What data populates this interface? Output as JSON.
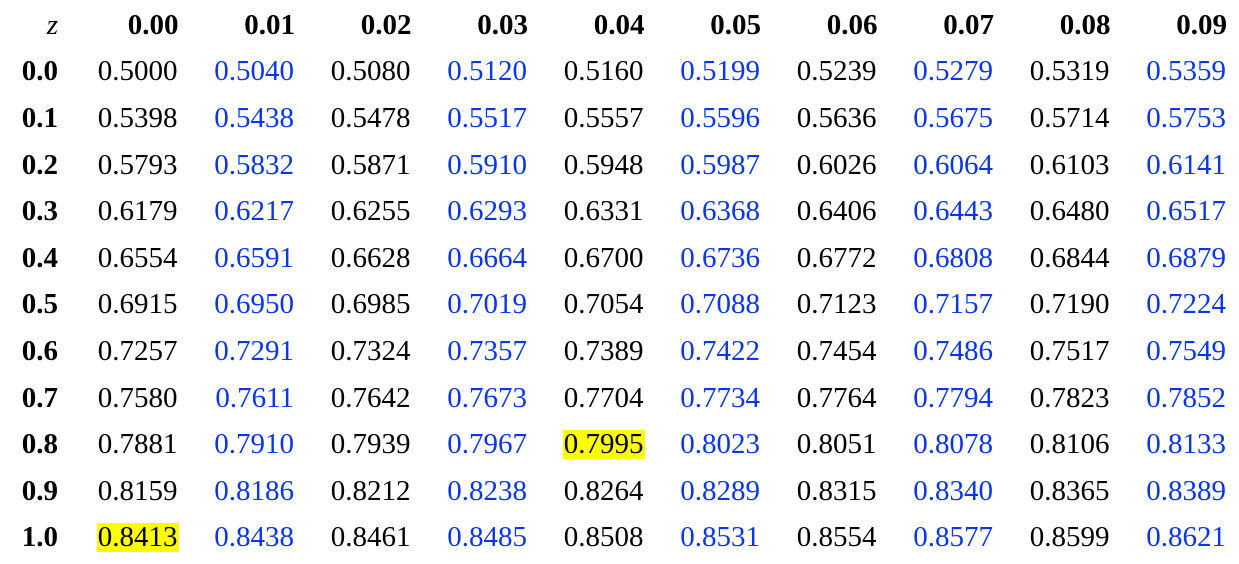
{
  "table": {
    "corner": "z",
    "columns": [
      "0.00",
      "0.01",
      "0.02",
      "0.03",
      "0.04",
      "0.05",
      "0.06",
      "0.07",
      "0.08",
      "0.09"
    ],
    "colors": {
      "black": "#000000",
      "blue": "#0a36e8",
      "highlight": "#ffff00"
    },
    "blue_columns": [
      1,
      3,
      5,
      7,
      9
    ],
    "rows": [
      {
        "z": "0.0",
        "values": [
          "0.5000",
          "0.5040",
          "0.5080",
          "0.5120",
          "0.5160",
          "0.5199",
          "0.5239",
          "0.5279",
          "0.5319",
          "0.5359"
        ]
      },
      {
        "z": "0.1",
        "values": [
          "0.5398",
          "0.5438",
          "0.5478",
          "0.5517",
          "0.5557",
          "0.5596",
          "0.5636",
          "0.5675",
          "0.5714",
          "0.5753"
        ]
      },
      {
        "z": "0.2",
        "values": [
          "0.5793",
          "0.5832",
          "0.5871",
          "0.5910",
          "0.5948",
          "0.5987",
          "0.6026",
          "0.6064",
          "0.6103",
          "0.6141"
        ]
      },
      {
        "z": "0.3",
        "values": [
          "0.6179",
          "0.6217",
          "0.6255",
          "0.6293",
          "0.6331",
          "0.6368",
          "0.6406",
          "0.6443",
          "0.6480",
          "0.6517"
        ]
      },
      {
        "z": "0.4",
        "values": [
          "0.6554",
          "0.6591",
          "0.6628",
          "0.6664",
          "0.6700",
          "0.6736",
          "0.6772",
          "0.6808",
          "0.6844",
          "0.6879"
        ]
      },
      {
        "z": "0.5",
        "values": [
          "0.6915",
          "0.6950",
          "0.6985",
          "0.7019",
          "0.7054",
          "0.7088",
          "0.7123",
          "0.7157",
          "0.7190",
          "0.7224"
        ]
      },
      {
        "z": "0.6",
        "values": [
          "0.7257",
          "0.7291",
          "0.7324",
          "0.7357",
          "0.7389",
          "0.7422",
          "0.7454",
          "0.7486",
          "0.7517",
          "0.7549"
        ]
      },
      {
        "z": "0.7",
        "values": [
          "0.7580",
          "0.7611",
          "0.7642",
          "0.7673",
          "0.7704",
          "0.7734",
          "0.7764",
          "0.7794",
          "0.7823",
          "0.7852"
        ]
      },
      {
        "z": "0.8",
        "values": [
          "0.7881",
          "0.7910",
          "0.7939",
          "0.7967",
          "0.7995",
          "0.8023",
          "0.8051",
          "0.8078",
          "0.8106",
          "0.8133"
        ],
        "highlight": [
          4
        ]
      },
      {
        "z": "0.9",
        "values": [
          "0.8159",
          "0.8186",
          "0.8212",
          "0.8238",
          "0.8264",
          "0.8289",
          "0.8315",
          "0.8340",
          "0.8365",
          "0.8389"
        ]
      },
      {
        "z": "1.0",
        "values": [
          "0.8413",
          "0.8438",
          "0.8461",
          "0.8485",
          "0.8508",
          "0.8531",
          "0.8554",
          "0.8577",
          "0.8599",
          "0.8621"
        ],
        "highlight": [
          0
        ]
      }
    ]
  }
}
